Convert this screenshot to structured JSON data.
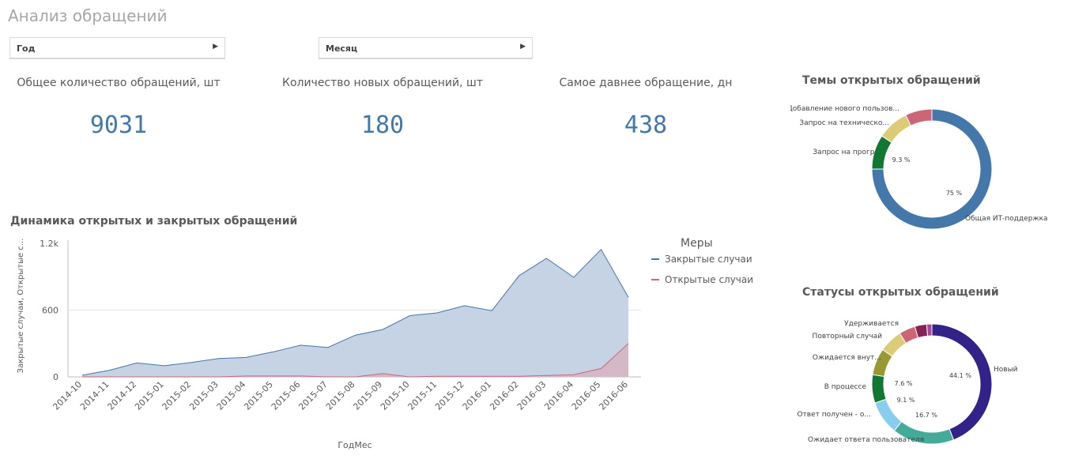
{
  "page": {
    "title": "Анализ обращений"
  },
  "filters": [
    {
      "label": "Год"
    },
    {
      "label": "Месяц"
    }
  ],
  "kpis": [
    {
      "label": "Общее количество обращений, шт",
      "value": "9031"
    },
    {
      "label": "Количество новых обращений, шт",
      "value": "180"
    },
    {
      "label": "Самое давнее обращение, дн",
      "value": "438"
    }
  ],
  "colors": {
    "closed": "#4477aa",
    "open": "#cc6677",
    "closed_fill": "#c5d3e4",
    "open_fill": "#d7b3c0"
  },
  "chart_data": [
    {
      "type": "area",
      "title": "Динамика открытых и закрытых обращений",
      "xlabel": "ГодМес",
      "ylabel": "Закрытые случаи, Открытые с...",
      "legend_title": "Меры",
      "legend_position": "right",
      "grid": true,
      "ylim": [
        0,
        1200
      ],
      "yticks": [
        "0",
        "600",
        "1.2k"
      ],
      "categories": [
        "2014-10",
        "2014-11",
        "2014-12",
        "2015-01",
        "2015-02",
        "2015-03",
        "2015-04",
        "2015-05",
        "2015-06",
        "2015-07",
        "2015-08",
        "2015-09",
        "2015-10",
        "2015-11",
        "2015-12",
        "2016-01",
        "2016-02",
        "2016-03",
        "2016-04",
        "2016-05",
        "2016-06"
      ],
      "series": [
        {
          "name": "Закрытые случаи",
          "values": [
            15,
            60,
            125,
            100,
            130,
            165,
            175,
            225,
            285,
            265,
            375,
            425,
            550,
            575,
            640,
            595,
            910,
            1065,
            895,
            1145,
            715
          ]
        },
        {
          "name": "Открытые случаи",
          "values": [
            0,
            0,
            0,
            0,
            0,
            0,
            8,
            8,
            8,
            0,
            0,
            30,
            0,
            5,
            5,
            5,
            5,
            12,
            20,
            75,
            300
          ]
        }
      ]
    },
    {
      "type": "pie",
      "title": "Темы открытых обращений",
      "labels": [
        "Общая ИТ-поддержка",
        "Запрос на прогр...",
        "Запрос на техническо...",
        "Добавление нового пользов..."
      ],
      "values": [
        75,
        9.3,
        8.5,
        7.2
      ],
      "value_labels": [
        "75 %",
        "9.3 %",
        "",
        ""
      ],
      "colors": [
        "#4477aa",
        "#117733",
        "#ddcc77",
        "#cc6677"
      ]
    },
    {
      "type": "pie",
      "title": "Статусы открытых обращений",
      "labels": [
        "Новый",
        "Ожидает ответа пользователя",
        "Ответ получен - о...",
        "В процессе",
        "Ожидается внут...",
        "Повторный случай",
        "Удерживается",
        "",
        ""
      ],
      "values": [
        44.1,
        16.7,
        9.1,
        7.6,
        7.2,
        6.3,
        4.4,
        3.2,
        1.4
      ],
      "value_labels": [
        "44.1 %",
        "16.7 %",
        "9.1 %",
        "7.6 %",
        "",
        "",
        "",
        "",
        ""
      ],
      "colors": [
        "#332288",
        "#44aa99",
        "#88ccee",
        "#117733",
        "#999933",
        "#ddcc77",
        "#cc6677",
        "#882255",
        "#aa4499"
      ]
    }
  ]
}
